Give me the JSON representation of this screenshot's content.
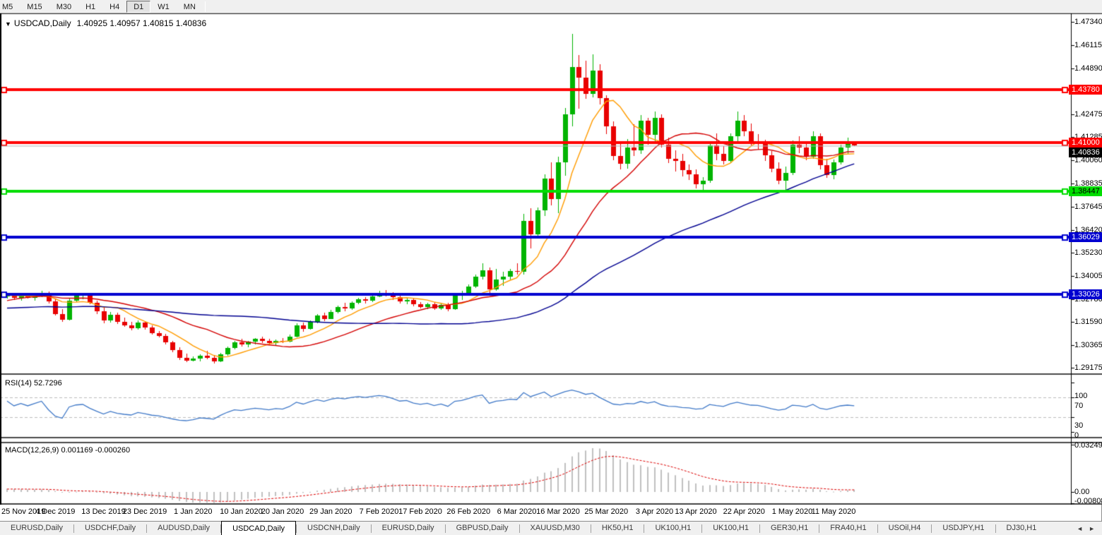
{
  "toolbar": {
    "timeframes": [
      "M5",
      "M15",
      "M30",
      "H1",
      "H4",
      "D1",
      "W1",
      "MN"
    ],
    "active_timeframe": "D1",
    "group_breaks": [
      4,
      7
    ]
  },
  "chart": {
    "symbol": "USDCAD,Daily",
    "ohlc": "1.40925 1.40957 1.40815 1.40836"
  },
  "indicators": {
    "rsi": {
      "label": "RSI(14) 52.7296",
      "period": 14,
      "value": 52.7296,
      "levels": [
        70,
        30
      ],
      "scale_labels": [
        "100",
        "70",
        "30",
        "0"
      ],
      "color": "#4079c8"
    },
    "macd": {
      "label": "MACD(12,26,9) 0.001169 -0.000260",
      "fast": 12,
      "slow": 26,
      "signal": 9,
      "value_main": 0.001169,
      "value_signal": -0.00026,
      "scale_labels": [
        "0.032493",
        "0.00",
        "-0.008086"
      ],
      "scale_max": 0.032493,
      "scale_min": -0.008086,
      "hist_color": "#c0c0c0",
      "signal_color": "#dd0000"
    },
    "moving_averages": [
      {
        "period": 8,
        "color": "#ff9c00"
      },
      {
        "period": 21,
        "color": "#d40000"
      },
      {
        "period": 55,
        "color": "#000090"
      }
    ]
  },
  "levels": [
    {
      "price": 1.4378,
      "label": "1.43780",
      "color": "#ff0000",
      "text_color": "#ffffff"
    },
    {
      "price": 1.41,
      "label": "1.41000",
      "color": "#ff0000",
      "text_color": "#ffffff"
    },
    {
      "price": 1.38447,
      "label": "1.38447",
      "color": "#00dd00",
      "text_color": "#000000"
    },
    {
      "price": 1.36029,
      "label": "1.36029",
      "color": "#0000d0",
      "text_color": "#ffffff"
    },
    {
      "price": 1.33026,
      "label": "1.33026",
      "color": "#0000d0",
      "text_color": "#ffffff"
    }
  ],
  "current_price": {
    "price": 1.40836,
    "label": "1.40836",
    "line_color": "#b4b4b4",
    "badge_color": "#000000",
    "text_color": "#ffffff"
  },
  "price_axis": {
    "max": 1.4734,
    "min": 1.29175,
    "ticks": [
      "1.47340",
      "1.46115",
      "1.44890",
      "1.42475",
      "1.41285",
      "1.40060",
      "1.38835",
      "1.37645",
      "1.36420",
      "1.35230",
      "1.34005",
      "1.32780",
      "1.31590",
      "1.30365",
      "1.29175"
    ]
  },
  "time_axis": {
    "ticks": [
      {
        "label": "25 Nov 2019",
        "index": 0
      },
      {
        "label": "4 Dec 2019",
        "index": 7
      },
      {
        "label": "13 Dec 2019",
        "index": 14
      },
      {
        "label": "23 Dec 2019",
        "index": 20
      },
      {
        "label": "1 Jan 2020",
        "index": 27
      },
      {
        "label": "10 Jan 2020",
        "index": 34
      },
      {
        "label": "20 Jan 2020",
        "index": 40
      },
      {
        "label": "29 Jan 2020",
        "index": 47
      },
      {
        "label": "7 Feb 2020",
        "index": 54
      },
      {
        "label": "17 Feb 2020",
        "index": 60
      },
      {
        "label": "26 Feb 2020",
        "index": 67
      },
      {
        "label": "6 Mar 2020",
        "index": 74
      },
      {
        "label": "16 Mar 2020",
        "index": 80
      },
      {
        "label": "25 Mar 2020",
        "index": 87
      },
      {
        "label": "3 Apr 2020",
        "index": 94
      },
      {
        "label": "13 Apr 2020",
        "index": 100
      },
      {
        "label": "22 Apr 2020",
        "index": 107
      },
      {
        "label": "1 May 2020",
        "index": 114
      },
      {
        "label": "11 May 2020",
        "index": 120
      }
    ]
  },
  "colors": {
    "candle_up": "#00b400",
    "candle_down": "#e80000",
    "chrome_bg": "#f0f0f0",
    "pane_border": "#555555",
    "grid_dash": "#bcbcbc"
  },
  "chart_data": {
    "type": "candlestick",
    "symbol": "USDCAD",
    "timeframe": "Daily",
    "prehistory_closes": [
      1.334,
      1.333,
      1.3315,
      1.33,
      1.3285,
      1.327,
      1.325,
      1.323,
      1.321,
      1.319,
      1.317,
      1.315,
      1.313,
      1.311,
      1.309,
      1.3075,
      1.3065,
      1.307,
      1.309,
      1.3115,
      1.314,
      1.317,
      1.32,
      1.323,
      1.3255,
      1.327,
      1.328,
      1.3285,
      1.3288,
      1.329,
      1.3292,
      1.3294,
      1.3295,
      1.3296,
      1.3296,
      1.3297,
      1.3297,
      1.3298,
      1.3298,
      1.3298
    ],
    "candles": [
      [
        "2019-11-25",
        1.3293,
        1.331,
        1.328,
        1.3301
      ],
      [
        "2019-11-26",
        1.3301,
        1.3308,
        1.3275,
        1.3283
      ],
      [
        "2019-11-27",
        1.3283,
        1.33,
        1.3272,
        1.3295
      ],
      [
        "2019-11-28",
        1.3295,
        1.3302,
        1.3278,
        1.3285
      ],
      [
        "2019-11-29",
        1.3285,
        1.33,
        1.327,
        1.3298
      ],
      [
        "2019-12-02",
        1.3298,
        1.332,
        1.3288,
        1.3312
      ],
      [
        "2019-12-03",
        1.3312,
        1.3318,
        1.3255,
        1.3265
      ],
      [
        "2019-12-04",
        1.3265,
        1.328,
        1.319,
        1.32
      ],
      [
        "2019-12-05",
        1.32,
        1.3225,
        1.3158,
        1.317
      ],
      [
        "2019-12-06",
        1.317,
        1.3285,
        1.3165,
        1.327
      ],
      [
        "2019-12-09",
        1.327,
        1.3305,
        1.326,
        1.3298
      ],
      [
        "2019-12-10",
        1.3298,
        1.3312,
        1.328,
        1.3305
      ],
      [
        "2019-12-11",
        1.3305,
        1.331,
        1.325,
        1.326
      ],
      [
        "2019-12-12",
        1.326,
        1.327,
        1.32,
        1.3215
      ],
      [
        "2019-12-13",
        1.3215,
        1.3235,
        1.315,
        1.3165
      ],
      [
        "2019-12-16",
        1.3165,
        1.321,
        1.3155,
        1.3195
      ],
      [
        "2019-12-17",
        1.3195,
        1.3205,
        1.3145,
        1.316
      ],
      [
        "2019-12-18",
        1.316,
        1.318,
        1.313,
        1.314
      ],
      [
        "2019-12-19",
        1.314,
        1.316,
        1.3115,
        1.3125
      ],
      [
        "2019-12-20",
        1.3125,
        1.3165,
        1.3115,
        1.3155
      ],
      [
        "2019-12-23",
        1.3155,
        1.316,
        1.312,
        1.313
      ],
      [
        "2019-12-24",
        1.313,
        1.314,
        1.309,
        1.31
      ],
      [
        "2019-12-25",
        1.31,
        1.311,
        1.3075,
        1.3085
      ],
      [
        "2019-12-26",
        1.3085,
        1.3095,
        1.304,
        1.305
      ],
      [
        "2019-12-27",
        1.305,
        1.306,
        1.3,
        1.301
      ],
      [
        "2019-12-30",
        1.301,
        1.3025,
        1.296,
        1.297
      ],
      [
        "2019-12-31",
        1.297,
        1.299,
        1.2945,
        1.2955
      ],
      [
        "2020-01-01",
        1.2955,
        1.2975,
        1.2948,
        1.2965
      ],
      [
        "2020-01-02",
        1.2965,
        1.2988,
        1.295,
        1.2982
      ],
      [
        "2020-01-03",
        1.2982,
        1.3005,
        1.296,
        1.297
      ],
      [
        "2020-01-06",
        1.297,
        1.2985,
        1.294,
        1.2952
      ],
      [
        "2020-01-07",
        1.2952,
        1.2995,
        1.2948,
        1.2988
      ],
      [
        "2020-01-08",
        1.2988,
        1.303,
        1.298,
        1.3022
      ],
      [
        "2020-01-09",
        1.3022,
        1.306,
        1.3015,
        1.3052
      ],
      [
        "2020-01-10",
        1.3052,
        1.307,
        1.303,
        1.304
      ],
      [
        "2020-01-13",
        1.304,
        1.306,
        1.3025,
        1.3055
      ],
      [
        "2020-01-14",
        1.3055,
        1.3075,
        1.304,
        1.3068
      ],
      [
        "2020-01-15",
        1.3068,
        1.308,
        1.3045,
        1.3058
      ],
      [
        "2020-01-16",
        1.3058,
        1.307,
        1.3035,
        1.3048
      ],
      [
        "2020-01-17",
        1.3048,
        1.3065,
        1.303,
        1.306
      ],
      [
        "2020-01-20",
        1.306,
        1.3075,
        1.3048,
        1.3055
      ],
      [
        "2020-01-21",
        1.3055,
        1.309,
        1.305,
        1.3082
      ],
      [
        "2020-01-22",
        1.3082,
        1.315,
        1.3075,
        1.314
      ],
      [
        "2020-01-23",
        1.314,
        1.3155,
        1.3108,
        1.312
      ],
      [
        "2020-01-24",
        1.312,
        1.3165,
        1.3115,
        1.3158
      ],
      [
        "2020-01-27",
        1.3158,
        1.32,
        1.315,
        1.319
      ],
      [
        "2020-01-28",
        1.319,
        1.3205,
        1.316,
        1.3175
      ],
      [
        "2020-01-29",
        1.3175,
        1.322,
        1.317,
        1.3212
      ],
      [
        "2020-01-30",
        1.3212,
        1.3245,
        1.3205,
        1.3238
      ],
      [
        "2020-01-31",
        1.3238,
        1.326,
        1.3215,
        1.323
      ],
      [
        "2020-02-03",
        1.323,
        1.3265,
        1.3222,
        1.3258
      ],
      [
        "2020-02-04",
        1.3258,
        1.3285,
        1.325,
        1.3278
      ],
      [
        "2020-02-05",
        1.3278,
        1.329,
        1.3255,
        1.327
      ],
      [
        "2020-02-06",
        1.327,
        1.33,
        1.3262,
        1.3292
      ],
      [
        "2020-02-07",
        1.3292,
        1.332,
        1.3285,
        1.3312
      ],
      [
        "2020-02-10",
        1.3312,
        1.3325,
        1.329,
        1.3305
      ],
      [
        "2020-02-11",
        1.3305,
        1.3315,
        1.3275,
        1.3288
      ],
      [
        "2020-02-12",
        1.3288,
        1.33,
        1.3255,
        1.3265
      ],
      [
        "2020-02-13",
        1.3265,
        1.3285,
        1.325,
        1.3275
      ],
      [
        "2020-02-14",
        1.3275,
        1.3285,
        1.324,
        1.325
      ],
      [
        "2020-02-17",
        1.325,
        1.3262,
        1.3228,
        1.3238
      ],
      [
        "2020-02-18",
        1.3238,
        1.326,
        1.3225,
        1.3252
      ],
      [
        "2020-02-19",
        1.3252,
        1.3262,
        1.322,
        1.323
      ],
      [
        "2020-02-20",
        1.323,
        1.3255,
        1.3222,
        1.3248
      ],
      [
        "2020-02-21",
        1.3248,
        1.3258,
        1.3215,
        1.3225
      ],
      [
        "2020-02-24",
        1.3225,
        1.3305,
        1.322,
        1.3295
      ],
      [
        "2020-02-25",
        1.3295,
        1.332,
        1.327,
        1.331
      ],
      [
        "2020-02-26",
        1.331,
        1.3355,
        1.33,
        1.3345
      ],
      [
        "2020-02-27",
        1.3345,
        1.3405,
        1.3335,
        1.3395
      ],
      [
        "2020-02-28",
        1.3395,
        1.3465,
        1.338,
        1.343
      ],
      [
        "2020-03-02",
        1.343,
        1.3445,
        1.331,
        1.333
      ],
      [
        "2020-03-03",
        1.333,
        1.3435,
        1.332,
        1.338
      ],
      [
        "2020-03-04",
        1.338,
        1.342,
        1.3345,
        1.3395
      ],
      [
        "2020-03-05",
        1.3395,
        1.3435,
        1.338,
        1.3425
      ],
      [
        "2020-03-06",
        1.3425,
        1.3465,
        1.3405,
        1.342
      ],
      [
        "2020-03-09",
        1.342,
        1.3725,
        1.3405,
        1.369
      ],
      [
        "2020-03-10",
        1.369,
        1.3755,
        1.3545,
        1.362
      ],
      [
        "2020-03-11",
        1.362,
        1.376,
        1.36,
        1.3745
      ],
      [
        "2020-03-12",
        1.3745,
        1.3935,
        1.3715,
        1.391
      ],
      [
        "2020-03-13",
        1.391,
        1.3995,
        1.377,
        1.3805
      ],
      [
        "2020-03-16",
        1.3805,
        1.4025,
        1.373,
        1.3995
      ],
      [
        "2020-03-17",
        1.3995,
        1.428,
        1.3925,
        1.425
      ],
      [
        "2020-03-18",
        1.425,
        1.467,
        1.4185,
        1.4495
      ],
      [
        "2020-03-19",
        1.4495,
        1.456,
        1.428,
        1.444
      ],
      [
        "2020-03-20",
        1.444,
        1.453,
        1.433,
        1.4355
      ],
      [
        "2020-03-23",
        1.4355,
        1.4565,
        1.434,
        1.448
      ],
      [
        "2020-03-24",
        1.448,
        1.451,
        1.43,
        1.4335
      ],
      [
        "2020-03-25",
        1.4335,
        1.435,
        1.4145,
        1.4185
      ],
      [
        "2020-03-26",
        1.4185,
        1.421,
        1.4005,
        1.403
      ],
      [
        "2020-03-27",
        1.403,
        1.4105,
        1.396,
        1.399
      ],
      [
        "2020-03-30",
        1.399,
        1.412,
        1.3965,
        1.4075
      ],
      [
        "2020-03-31",
        1.4075,
        1.4195,
        1.403,
        1.406
      ],
      [
        "2020-04-01",
        1.406,
        1.4245,
        1.404,
        1.4215
      ],
      [
        "2020-04-02",
        1.4215,
        1.423,
        1.409,
        1.414
      ],
      [
        "2020-04-03",
        1.414,
        1.4265,
        1.411,
        1.423
      ],
      [
        "2020-04-06",
        1.423,
        1.425,
        1.4075,
        1.409
      ],
      [
        "2020-04-07",
        1.409,
        1.4125,
        1.399,
        1.4015
      ],
      [
        "2020-04-08",
        1.4015,
        1.406,
        1.395,
        1.4005
      ],
      [
        "2020-04-09",
        1.4005,
        1.404,
        1.392,
        1.3955
      ],
      [
        "2020-04-10",
        1.3955,
        1.3985,
        1.3905,
        1.3935
      ],
      [
        "2020-04-13",
        1.3935,
        1.396,
        1.386,
        1.388
      ],
      [
        "2020-04-14",
        1.388,
        1.392,
        1.3855,
        1.39
      ],
      [
        "2020-04-15",
        1.39,
        1.41,
        1.389,
        1.4085
      ],
      [
        "2020-04-16",
        1.4085,
        1.415,
        1.401,
        1.404
      ],
      [
        "2020-04-17",
        1.404,
        1.408,
        1.3985,
        1.4005
      ],
      [
        "2020-04-20",
        1.4005,
        1.415,
        1.3995,
        1.4135
      ],
      [
        "2020-04-21",
        1.4135,
        1.4265,
        1.411,
        1.4215
      ],
      [
        "2020-04-22",
        1.4215,
        1.4245,
        1.4135,
        1.416
      ],
      [
        "2020-04-23",
        1.416,
        1.42,
        1.4085,
        1.4105
      ],
      [
        "2020-04-24",
        1.4105,
        1.4145,
        1.4065,
        1.4095
      ],
      [
        "2020-04-27",
        1.4095,
        1.4115,
        1.4005,
        1.4035
      ],
      [
        "2020-04-28",
        1.4035,
        1.4055,
        1.3945,
        1.3962
      ],
      [
        "2020-04-29",
        1.3962,
        1.3995,
        1.388,
        1.39
      ],
      [
        "2020-04-30",
        1.39,
        1.3975,
        1.385,
        1.394
      ],
      [
        "2020-05-01",
        1.394,
        1.411,
        1.393,
        1.409
      ],
      [
        "2020-05-04",
        1.409,
        1.4135,
        1.4045,
        1.4075
      ],
      [
        "2020-05-05",
        1.4075,
        1.4095,
        1.4005,
        1.4025
      ],
      [
        "2020-05-06",
        1.4025,
        1.416,
        1.4015,
        1.4135
      ],
      [
        "2020-05-07",
        1.4135,
        1.415,
        1.396,
        1.398
      ],
      [
        "2020-05-08",
        1.398,
        1.4015,
        1.3915,
        1.393
      ],
      [
        "2020-05-11",
        1.393,
        1.401,
        1.3905,
        1.3995
      ],
      [
        "2020-05-12",
        1.3995,
        1.409,
        1.3985,
        1.4075
      ],
      [
        "2020-05-13",
        1.4075,
        1.4125,
        1.404,
        1.4105
      ],
      [
        "2020-05-14",
        1.40925,
        1.40957,
        1.40815,
        1.40836
      ]
    ]
  },
  "tabs": {
    "items": [
      "EURUSD,Daily",
      "USDCHF,Daily",
      "AUDUSD,Daily",
      "USDCAD,Daily",
      "USDCNH,Daily",
      "EURUSD,Daily",
      "GBPUSD,Daily",
      "XAUUSD,M30",
      "HK50,H1",
      "UK100,H1",
      "UK100,H1",
      "GER30,H1",
      "FRA40,H1",
      "USOil,H4",
      "USDJPY,H1",
      "DJ30,H1"
    ],
    "active_index": 3,
    "scroll_left_icon": "◄",
    "scroll_right_icon": "►"
  }
}
